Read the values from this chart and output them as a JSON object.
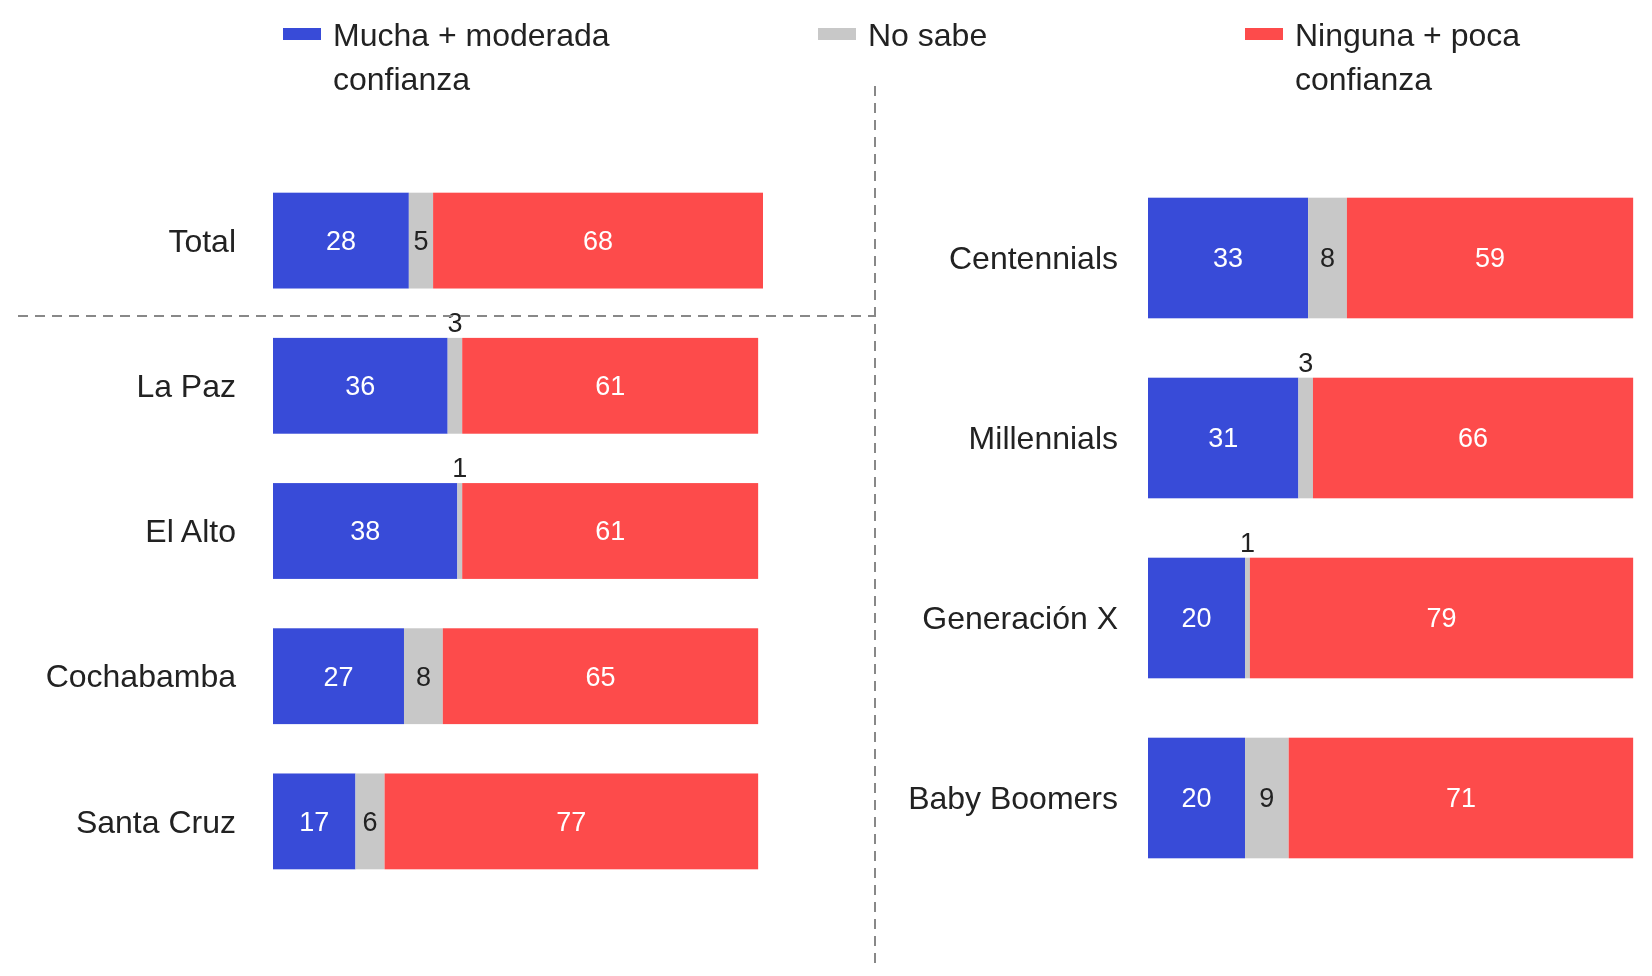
{
  "chart_data": [
    {
      "type": "bar",
      "orientation": "horizontal",
      "stacked": true,
      "data_labels": true,
      "legend": "top",
      "categories": [
        "Total",
        "La Paz",
        "El Alto",
        "Cochabamba",
        "Santa Cruz"
      ],
      "series": [
        {
          "name": "Mucha + moderada confianza",
          "color": "#384bd8",
          "values": [
            28,
            36,
            38,
            27,
            17
          ]
        },
        {
          "name": "No sabe",
          "color": "#c8c8c8",
          "values": [
            5,
            3,
            1,
            8,
            6
          ]
        },
        {
          "name": "Ninguna + poca confianza",
          "color": "#fd4b4b",
          "values": [
            68,
            61,
            61,
            65,
            77
          ]
        }
      ]
    },
    {
      "type": "bar",
      "orientation": "horizontal",
      "stacked": true,
      "data_labels": true,
      "categories": [
        "Centennials",
        "Millennials",
        "Generación X",
        "Baby Boomers"
      ],
      "series": [
        {
          "color": "#384bd8",
          "values": [
            33,
            31,
            20,
            20
          ]
        },
        {
          "color": "#c8c8c8",
          "values": [
            8,
            3,
            1,
            9
          ]
        },
        {
          "color": "#fd4b4b",
          "values": [
            59,
            66,
            79,
            71
          ]
        }
      ]
    }
  ]
}
